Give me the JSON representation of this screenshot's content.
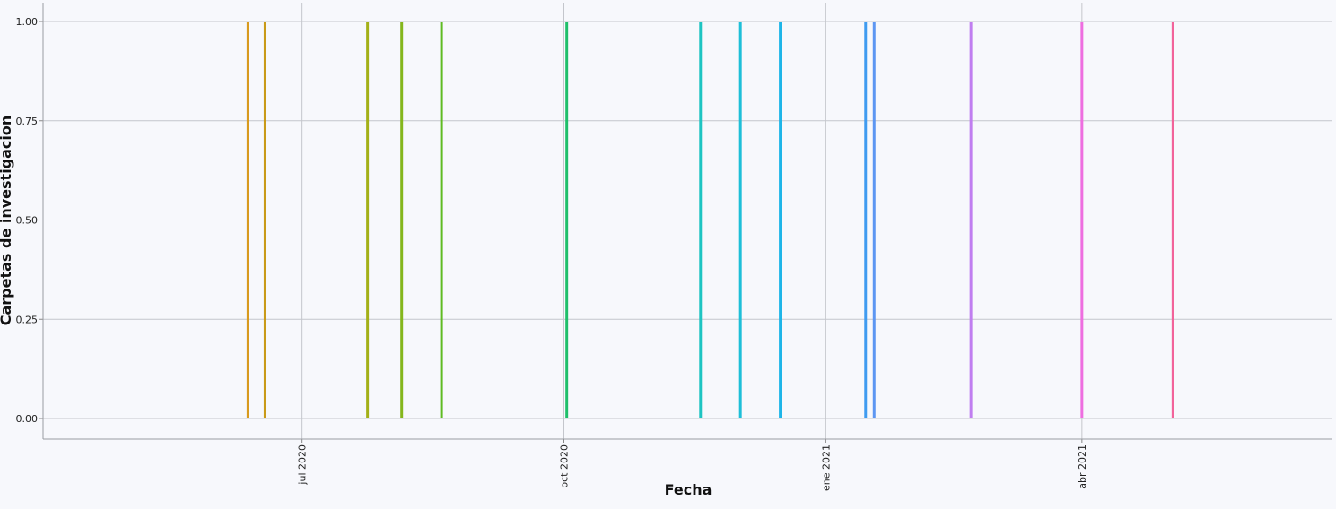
{
  "chart_data": {
    "type": "bar",
    "xlabel": "Fecha",
    "ylabel": "Carpetas de investigacion",
    "ylim": [
      0,
      1
    ],
    "xlim": [
      "2020-04-01",
      "2021-06-28"
    ],
    "grid": true,
    "y_ticks": [
      {
        "value": 0,
        "label": "0.00"
      },
      {
        "value": 0.25,
        "label": "0.25"
      },
      {
        "value": 0.5,
        "label": "0.50"
      },
      {
        "value": 0.75,
        "label": "0.75"
      },
      {
        "value": 1,
        "label": "1.00"
      }
    ],
    "x_ticks": [
      {
        "date": "2020-07-01",
        "label": "jul 2020"
      },
      {
        "date": "2020-10-01",
        "label": "oct 2020"
      },
      {
        "date": "2021-01-01",
        "label": "ene 2021"
      },
      {
        "date": "2021-04-01",
        "label": "abr 2021"
      }
    ],
    "points": [
      {
        "x": "2020-06-12",
        "y": 1,
        "color": "#d89a1e"
      },
      {
        "x": "2020-06-18",
        "y": 1,
        "color": "#c99a18"
      },
      {
        "x": "2020-07-24",
        "y": 1,
        "color": "#a3b018"
      },
      {
        "x": "2020-08-05",
        "y": 1,
        "color": "#84b61c"
      },
      {
        "x": "2020-08-19",
        "y": 1,
        "color": "#5fbb22"
      },
      {
        "x": "2020-10-02",
        "y": 1,
        "color": "#1fbf6a"
      },
      {
        "x": "2020-11-18",
        "y": 1,
        "color": "#1ec4c2"
      },
      {
        "x": "2020-12-02",
        "y": 1,
        "color": "#1ebfd8"
      },
      {
        "x": "2020-12-16",
        "y": 1,
        "color": "#1eb5e8"
      },
      {
        "x": "2021-01-15",
        "y": 1,
        "color": "#3f9bf0"
      },
      {
        "x": "2021-01-18",
        "y": 1,
        "color": "#5d96f2"
      },
      {
        "x": "2021-02-21",
        "y": 1,
        "color": "#c07ef0"
      },
      {
        "x": "2021-04-01",
        "y": 1,
        "color": "#ee6ee0"
      },
      {
        "x": "2021-05-03",
        "y": 1,
        "color": "#f2639a"
      }
    ]
  }
}
